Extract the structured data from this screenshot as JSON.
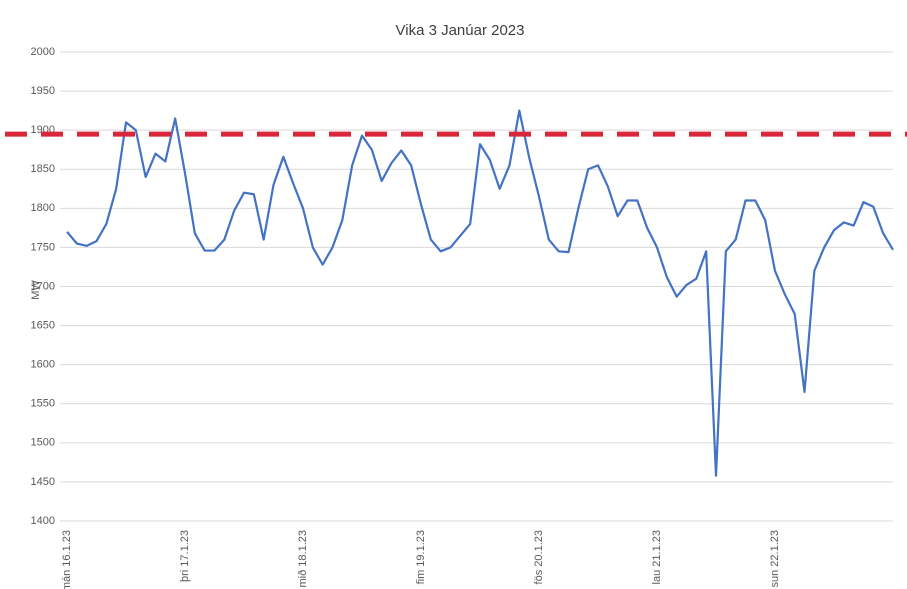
{
  "chart_data": {
    "type": "line",
    "title": "Vika 3 Janúar 2023",
    "y_label": "MW",
    "categories": [
      "mán 16.1.23",
      null,
      null,
      null,
      null,
      null,
      null,
      null,
      null,
      null,
      null,
      null,
      "þri 17.1.23",
      null,
      null,
      null,
      null,
      null,
      null,
      null,
      null,
      null,
      null,
      null,
      "mið 18.1.23",
      null,
      null,
      null,
      null,
      null,
      null,
      null,
      null,
      null,
      null,
      null,
      "fim 19.1.23",
      null,
      null,
      null,
      null,
      null,
      null,
      null,
      null,
      null,
      null,
      null,
      "fös 20.1.23",
      null,
      null,
      null,
      null,
      null,
      null,
      null,
      null,
      null,
      null,
      null,
      "lau 21.1.23",
      null,
      null,
      null,
      null,
      null,
      null,
      null,
      null,
      null,
      null,
      null,
      "sun 22.1.23",
      null,
      null,
      null,
      null,
      null,
      null,
      null,
      null,
      null,
      null,
      null,
      null
    ],
    "series": [
      {
        "name": "MW",
        "color": "#4472c4",
        "values": [
          1770,
          1755,
          1752,
          1758,
          1780,
          1825,
          1910,
          1900,
          1840,
          1870,
          1860,
          1915,
          1845,
          1768,
          1746,
          1746,
          1760,
          1797,
          1820,
          1818,
          1760,
          1830,
          1866,
          1832,
          1800,
          1750,
          1728,
          1750,
          1785,
          1855,
          1893,
          1875,
          1835,
          1858,
          1874,
          1855,
          1805,
          1760,
          1745,
          1750,
          1765,
          1780,
          1882,
          1862,
          1825,
          1855,
          1925,
          1865,
          1815,
          1760,
          1745,
          1744,
          1800,
          1850,
          1855,
          1828,
          1790,
          1810,
          1810,
          1775,
          1750,
          1712,
          1687,
          1702,
          1710,
          1745,
          1458,
          1745,
          1760,
          1810,
          1810,
          1785,
          1720,
          1690,
          1665,
          1565,
          1720,
          1750,
          1772,
          1782,
          1778,
          1808,
          1802,
          1768,
          1747
        ]
      }
    ],
    "reference_line": {
      "value": 1895,
      "color": "#d9263a"
    },
    "ylim": [
      1400,
      2000
    ],
    "yticks": [
      1400,
      1450,
      1500,
      1550,
      1600,
      1650,
      1700,
      1750,
      1800,
      1850,
      1900,
      1950,
      2000
    ],
    "grid": true
  }
}
